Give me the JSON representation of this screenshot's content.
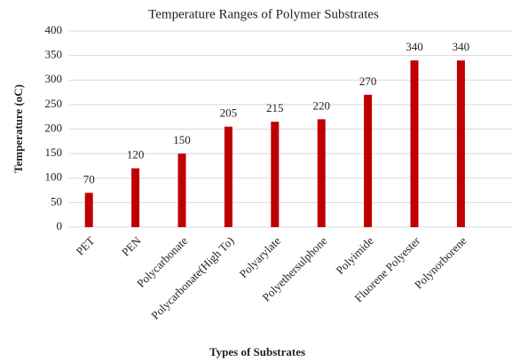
{
  "chart_data": {
    "type": "bar",
    "title": "Temperature Ranges of Polymer Substrates",
    "x_label": "Types of Substrates",
    "y_label": "Temperature (oC)",
    "categories": [
      "PET",
      "PEN",
      "Polycarbonate",
      "Polycarbonate(High To)",
      "Polyarylate",
      "Polyethersulphone",
      "Polyimide",
      "Fluorene Polyester",
      "Polynorborene"
    ],
    "values": [
      70,
      120,
      150,
      205,
      215,
      220,
      270,
      340,
      340
    ],
    "color": "#c00000",
    "ylim": [
      0,
      400
    ],
    "yticks": [
      0,
      50,
      100,
      150,
      200,
      250,
      300,
      350,
      400
    ],
    "grid": true,
    "data_labels": true
  }
}
